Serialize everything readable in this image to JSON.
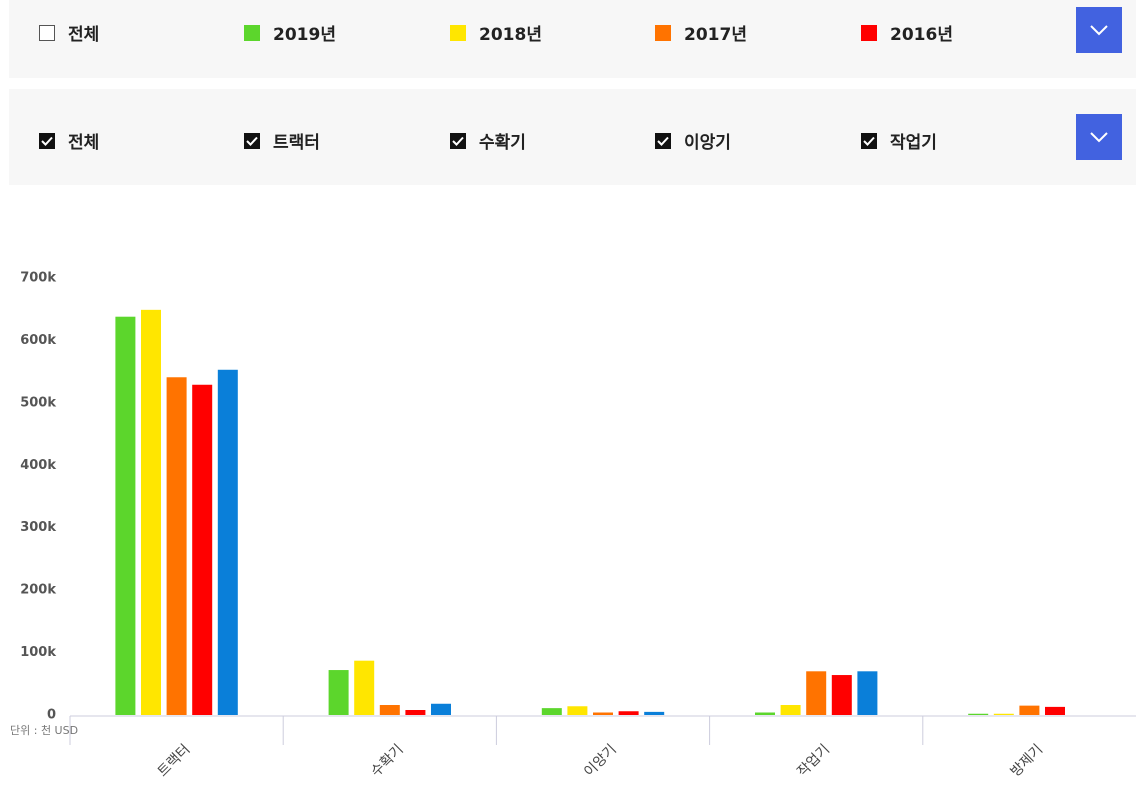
{
  "filters": {
    "years": [
      {
        "label": "전체",
        "checked": false
      },
      {
        "label": "2019년",
        "color": "#5cd62c"
      },
      {
        "label": "2018년",
        "color": "#ffe600"
      },
      {
        "label": "2017년",
        "color": "#ff7300"
      },
      {
        "label": "2016년",
        "color": "#ff0000"
      }
    ],
    "machines": [
      {
        "label": "전체",
        "checked": true
      },
      {
        "label": "트랙터",
        "checked": true
      },
      {
        "label": "수확기",
        "checked": true
      },
      {
        "label": "이앙기",
        "checked": true
      },
      {
        "label": "작업기",
        "checked": true
      }
    ]
  },
  "chart_data": {
    "type": "bar",
    "unit_note": "단위 : 천 USD",
    "categories": [
      "트랙터",
      "수확기",
      "이앙기",
      "작업기",
      "방제기"
    ],
    "series": [
      {
        "name": "2019년",
        "color": "#5cd62c",
        "values": [
          638000,
          72000,
          11000,
          4000,
          2000
        ]
      },
      {
        "name": "2018년",
        "color": "#ffe600",
        "values": [
          649000,
          87000,
          14000,
          16000,
          2000
        ]
      },
      {
        "name": "2017년",
        "color": "#ff7300",
        "values": [
          541000,
          16000,
          4000,
          70000,
          15000
        ]
      },
      {
        "name": "2016년",
        "color": "#ff0000",
        "values": [
          529000,
          8000,
          6000,
          64000,
          13000
        ]
      },
      {
        "color": "#0a7fd9",
        "values": [
          553000,
          18000,
          5000,
          70000,
          null
        ]
      }
    ],
    "ylim": [
      0,
      700000
    ],
    "yticks": [
      0,
      {
        "value": 100000,
        "label": "100k"
      },
      {
        "value": 200000,
        "label": "200k"
      },
      {
        "value": 300000,
        "label": "300k"
      },
      {
        "value": 400000,
        "label": "400k"
      },
      {
        "value": 500000,
        "label": "500k"
      },
      {
        "value": 600000,
        "label": "600k"
      },
      {
        "value": 700000,
        "label": "700k"
      }
    ],
    "grid": false
  }
}
